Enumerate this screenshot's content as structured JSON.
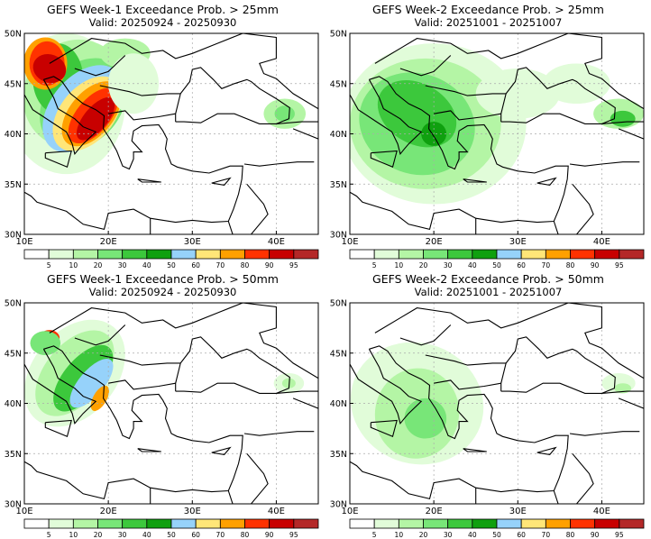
{
  "panels": [
    {
      "title": "GEFS Week-1 Exceedance Prob. > 25mm",
      "valid": "Valid: 20250924 - 20250930",
      "week": 1,
      "threshold": "25mm"
    },
    {
      "title": "GEFS Week-2 Exceedance Prob. > 25mm",
      "valid": "Valid: 20251001 - 20251007",
      "week": 2,
      "threshold": "25mm"
    },
    {
      "title": "GEFS Week-1 Exceedance Prob. > 50mm",
      "valid": "Valid: 20250924 - 20250930",
      "week": 1,
      "threshold": "50mm"
    },
    {
      "title": "GEFS Week-2 Exceedance Prob. > 50mm",
      "valid": "Valid: 20251001 - 20251007",
      "week": 2,
      "threshold": "50mm"
    }
  ],
  "axes": {
    "lon_labels": [
      "10E",
      "20E",
      "30E",
      "40E"
    ],
    "lat_labels": [
      "30N",
      "35N",
      "40N",
      "45N",
      "50N"
    ]
  },
  "colorbar": {
    "levels": [
      "5",
      "10",
      "20",
      "30",
      "40",
      "50",
      "60",
      "70",
      "80",
      "90",
      "95"
    ],
    "colors": [
      "#ffffff",
      "#e1fcd9",
      "#b4f5a5",
      "#78e678",
      "#3cc83c",
      "#0fa00f",
      "#96d2fa",
      "#ffe678",
      "#ffa000",
      "#ff3200",
      "#c80000",
      "#b42828"
    ]
  }
}
